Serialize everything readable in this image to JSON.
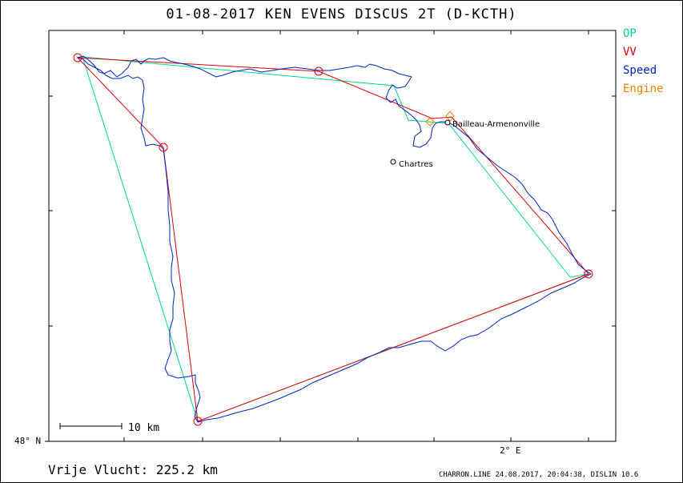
{
  "header": {
    "title": "01-08-2017   KEN EVENS   DISCUS 2T (D-KCTH)"
  },
  "legend": [
    {
      "label": "OP",
      "color": "#00d98a"
    },
    {
      "label": "VV",
      "color": "#e00000"
    },
    {
      "label": "Speed",
      "color": "#0022cc"
    },
    {
      "label": "Engine",
      "color": "#ff8000"
    }
  ],
  "axes": {
    "y_label": "48° N",
    "x_label": "2° E"
  },
  "scale": {
    "label": "10 km"
  },
  "places": [
    {
      "name": "Bailleau-Armenonville"
    },
    {
      "name": "Chartres"
    }
  ],
  "footer": {
    "distance": "Vrije Vlucht:  225.2 km",
    "credit": "CHARRON.LINE 24.08.2017, 20:04:38, DISLIN 10.6"
  },
  "colors": {
    "track": "#0022cc",
    "op": "#00d98a",
    "vv": "#e00000",
    "engine": "#ff8000"
  }
}
